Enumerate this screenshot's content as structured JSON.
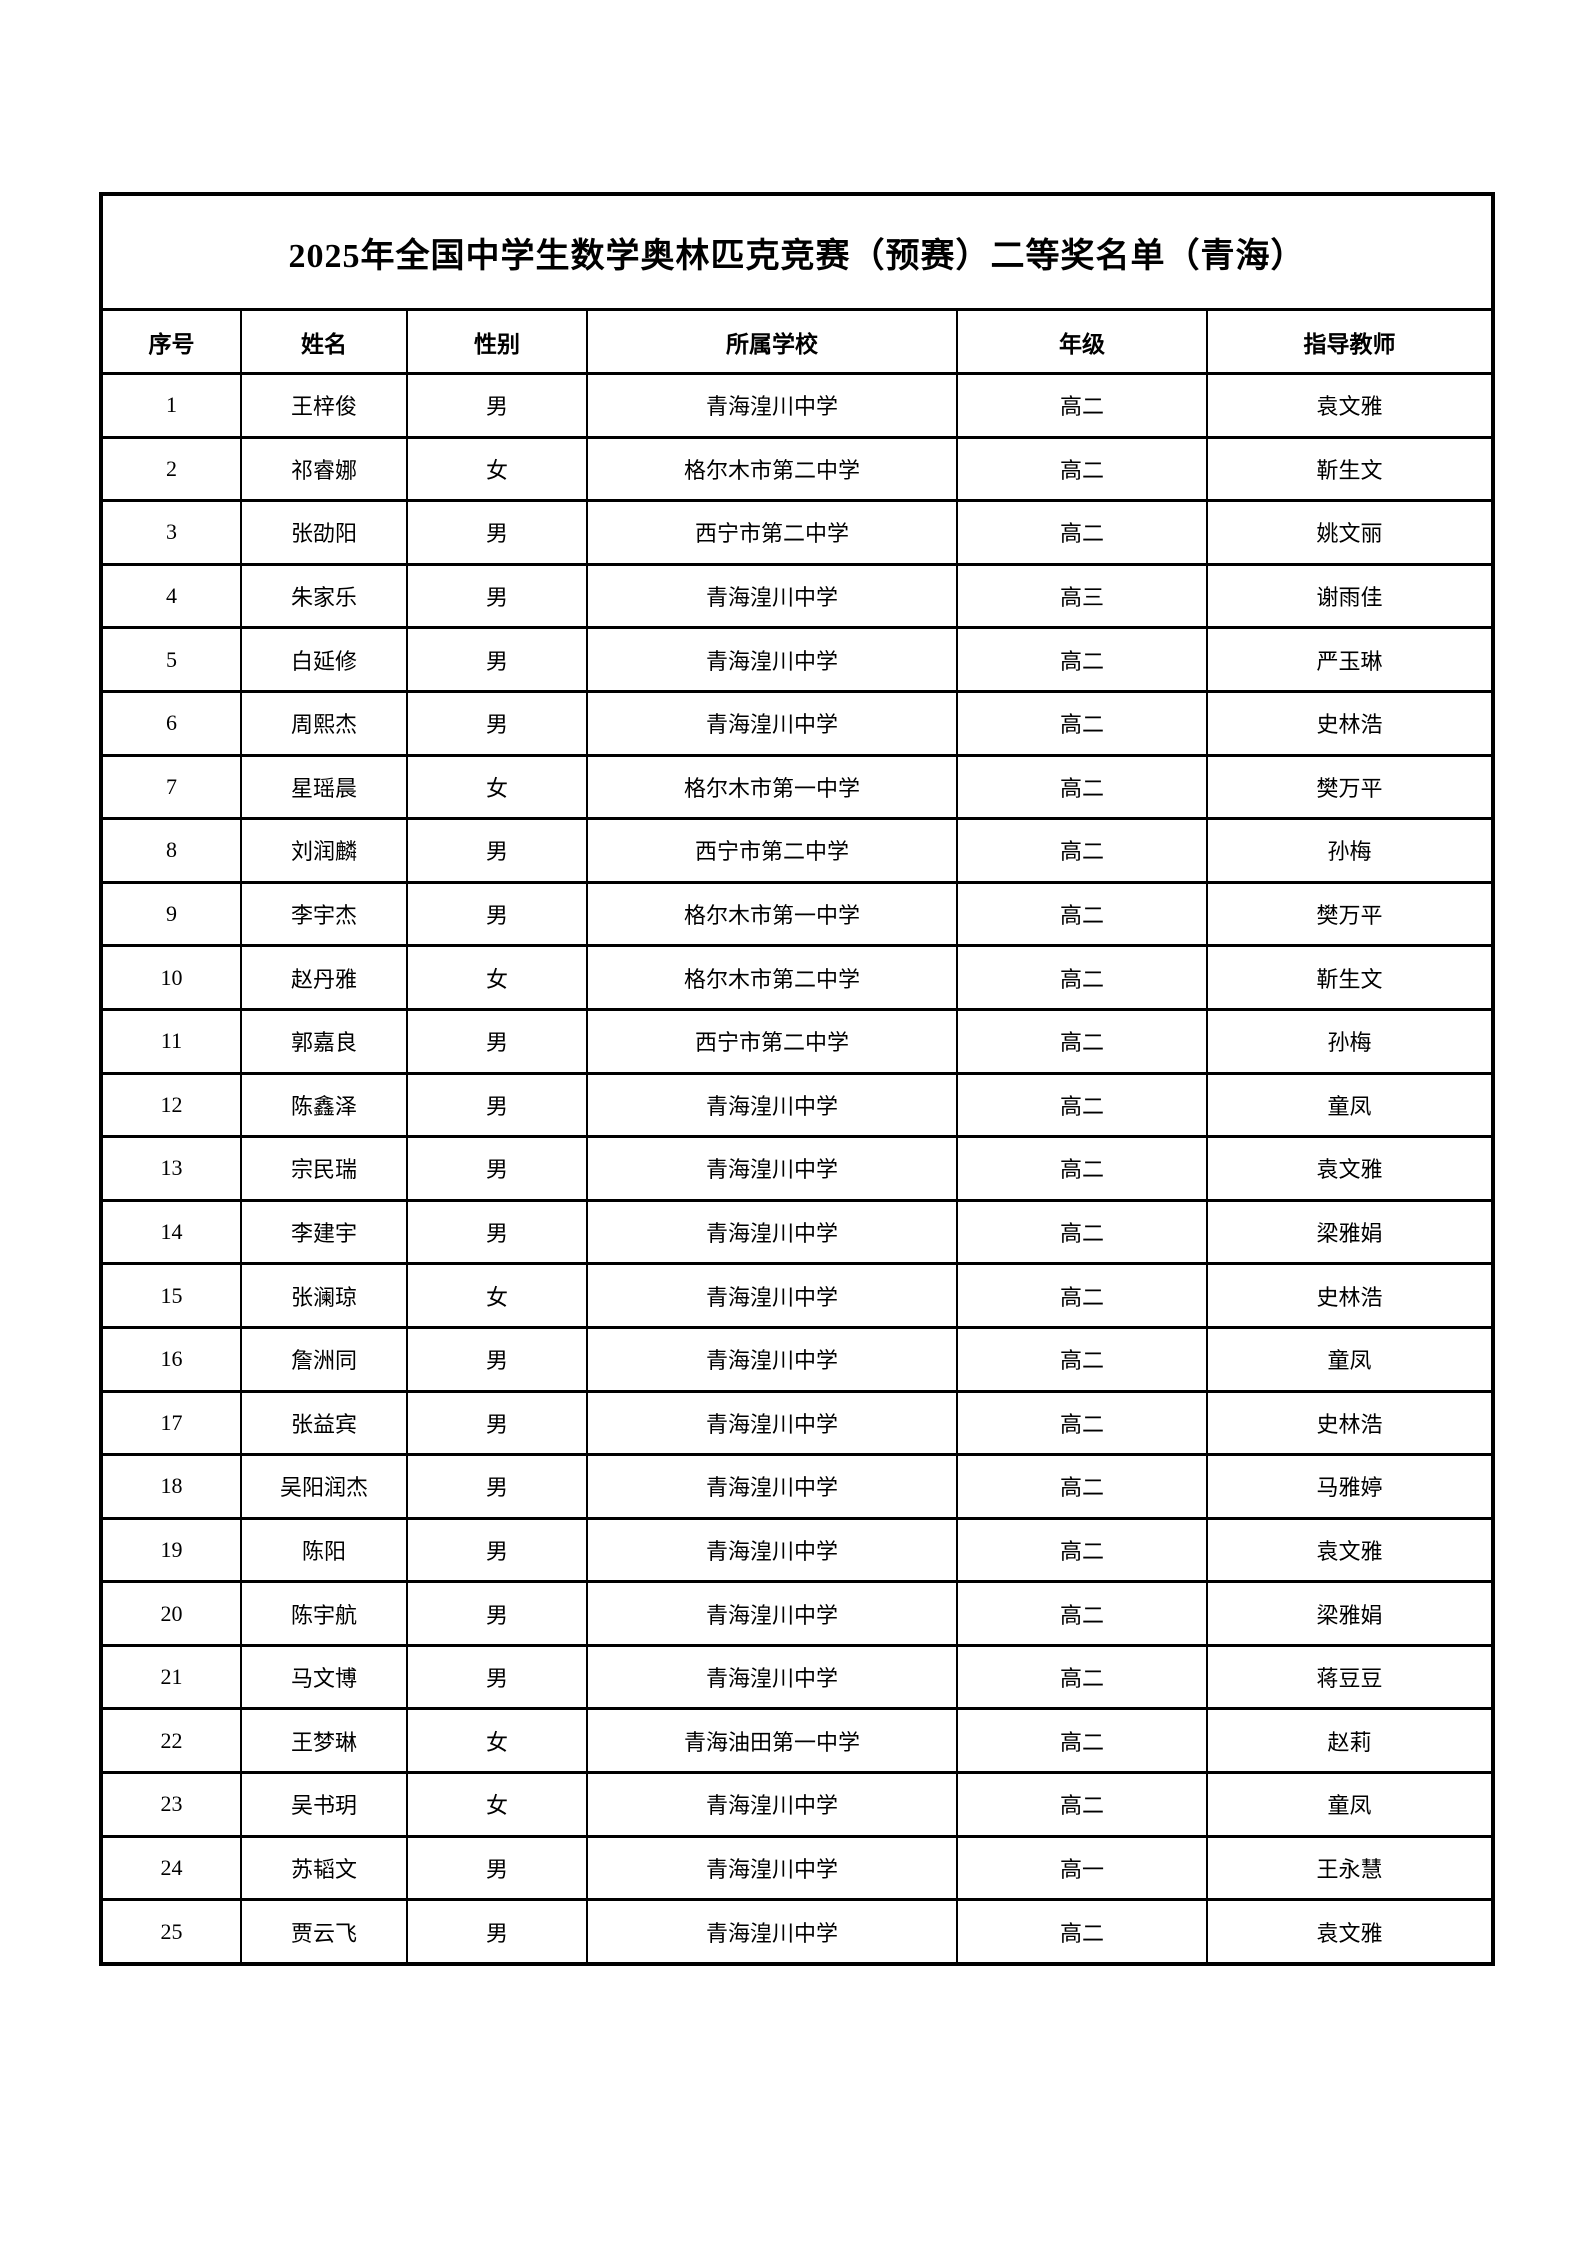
{
  "title": "2025年全国中学生数学奥林匹克竞赛（预赛）二等奖名单（青海）",
  "table": {
    "headers": [
      "序号",
      "姓名",
      "性别",
      "所属学校",
      "年级",
      "指导教师"
    ],
    "rows": [
      [
        "1",
        "王梓俊",
        "男",
        "青海湟川中学",
        "高二",
        "袁文雅"
      ],
      [
        "2",
        "祁睿娜",
        "女",
        "格尔木市第二中学",
        "高二",
        "靳生文"
      ],
      [
        "3",
        "张劭阳",
        "男",
        "西宁市第二中学",
        "高二",
        "姚文丽"
      ],
      [
        "4",
        "朱家乐",
        "男",
        "青海湟川中学",
        "高三",
        "谢雨佳"
      ],
      [
        "5",
        "白延修",
        "男",
        "青海湟川中学",
        "高二",
        "严玉琳"
      ],
      [
        "6",
        "周熙杰",
        "男",
        "青海湟川中学",
        "高二",
        "史林浩"
      ],
      [
        "7",
        "星瑶晨",
        "女",
        "格尔木市第一中学",
        "高二",
        "樊万平"
      ],
      [
        "8",
        "刘润麟",
        "男",
        "西宁市第二中学",
        "高二",
        "孙梅"
      ],
      [
        "9",
        "李宇杰",
        "男",
        "格尔木市第一中学",
        "高二",
        "樊万平"
      ],
      [
        "10",
        "赵丹雅",
        "女",
        "格尔木市第二中学",
        "高二",
        "靳生文"
      ],
      [
        "11",
        "郭嘉良",
        "男",
        "西宁市第二中学",
        "高二",
        "孙梅"
      ],
      [
        "12",
        "陈鑫泽",
        "男",
        "青海湟川中学",
        "高二",
        "童凤"
      ],
      [
        "13",
        "宗民瑞",
        "男",
        "青海湟川中学",
        "高二",
        "袁文雅"
      ],
      [
        "14",
        "李建宇",
        "男",
        "青海湟川中学",
        "高二",
        "梁雅娟"
      ],
      [
        "15",
        "张澜琼",
        "女",
        "青海湟川中学",
        "高二",
        "史林浩"
      ],
      [
        "16",
        "詹洲同",
        "男",
        "青海湟川中学",
        "高二",
        "童凤"
      ],
      [
        "17",
        "张益宾",
        "男",
        "青海湟川中学",
        "高二",
        "史林浩"
      ],
      [
        "18",
        "吴阳润杰",
        "男",
        "青海湟川中学",
        "高二",
        "马雅婷"
      ],
      [
        "19",
        "陈阳",
        "男",
        "青海湟川中学",
        "高二",
        "袁文雅"
      ],
      [
        "20",
        "陈宇航",
        "男",
        "青海湟川中学",
        "高二",
        "梁雅娟"
      ],
      [
        "21",
        "马文博",
        "男",
        "青海湟川中学",
        "高二",
        "蒋豆豆"
      ],
      [
        "22",
        "王梦琳",
        "女",
        "青海油田第一中学",
        "高二",
        "赵莉"
      ],
      [
        "23",
        "吴书玥",
        "女",
        "青海湟川中学",
        "高二",
        "童凤"
      ],
      [
        "24",
        "苏韬文",
        "男",
        "青海湟川中学",
        "高一",
        "王永慧"
      ],
      [
        "25",
        "贾云飞",
        "男",
        "青海湟川中学",
        "高二",
        "袁文雅"
      ]
    ]
  }
}
